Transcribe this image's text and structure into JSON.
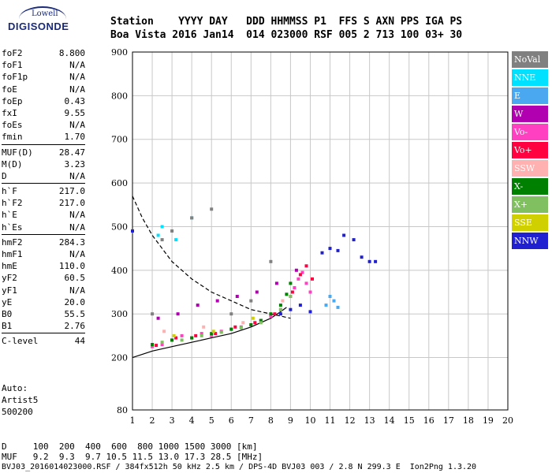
{
  "logo": {
    "line1": "Lowell",
    "line2": "DIGISONDE"
  },
  "header": {
    "row1": "Station    YYYY DAY   DDD HHMMSS P1  FFS S AXN PPS IGA PS",
    "row2": "Boa Vista 2016 Jan14  014 023000 RSF 005 2 713 100 03+ 30"
  },
  "params": [
    {
      "label": "foF2",
      "value": "8.800"
    },
    {
      "label": "foF1",
      "value": "N/A"
    },
    {
      "label": "foF1p",
      "value": "N/A"
    },
    {
      "label": "foE",
      "value": "N/A"
    },
    {
      "label": "foEp",
      "value": "0.43"
    },
    {
      "label": "fxI",
      "value": "9.55"
    },
    {
      "label": "foEs",
      "value": "N/A"
    },
    {
      "label": "fmin",
      "value": "1.70"
    },
    {
      "label": "MUF(D)",
      "value": "28.47",
      "sep": true
    },
    {
      "label": "M(D)",
      "value": "3.23"
    },
    {
      "label": "D",
      "value": "N/A"
    },
    {
      "label": "h`F",
      "value": "217.0",
      "sep": true
    },
    {
      "label": "h`F2",
      "value": "217.0"
    },
    {
      "label": "h`E",
      "value": "N/A"
    },
    {
      "label": "h`Es",
      "value": "N/A"
    },
    {
      "label": "hmF2",
      "value": "284.3",
      "sep": true
    },
    {
      "label": "hmF1",
      "value": "N/A"
    },
    {
      "label": "hmE",
      "value": "110.0"
    },
    {
      "label": "yF2",
      "value": "60.5"
    },
    {
      "label": "yF1",
      "value": "N/A"
    },
    {
      "label": "yE",
      "value": "20.0"
    },
    {
      "label": "B0",
      "value": "55.5"
    },
    {
      "label": "B1",
      "value": "2.76"
    },
    {
      "label": "C-level",
      "value": "44",
      "sep": true
    }
  ],
  "auto": {
    "line1": "Auto:",
    "line2": "Artist5",
    "line3": "500200"
  },
  "footer": {
    "d_row": "D     100  200  400  600  800 1000 1500 3000 [km]",
    "muf_row": "MUF   9.2  9.3  9.7 10.5 11.5 13.0 17.3 28.5 [MHz]",
    "file_row": "BVJ03_2016014023000.RSF / 384fx512h 50 kHz 2.5 km / DPS-4D BVJ03 003 / 2.8 N 299.3 E  Ion2Png 1.3.20"
  },
  "legend": [
    {
      "name": "NoVal",
      "color": "#808080"
    },
    {
      "name": "NNE",
      "color": "#00e0ff"
    },
    {
      "name": "E",
      "color": "#4aa8f0"
    },
    {
      "name": "W",
      "color": "#b000b0"
    },
    {
      "name": "Vo-",
      "color": "#ff40c0"
    },
    {
      "name": "Vo+",
      "color": "#ff0040"
    },
    {
      "name": "SSW",
      "color": "#ffb0b0"
    },
    {
      "name": "X-",
      "color": "#008000"
    },
    {
      "name": "X+",
      "color": "#80c060"
    },
    {
      "name": "SSE",
      "color": "#d0d000"
    },
    {
      "name": "NNW",
      "color": "#2020d0"
    }
  ],
  "chart_data": {
    "type": "scatter",
    "xlabel": "",
    "ylabel": "",
    "xlim": [
      1,
      20
    ],
    "ylim": [
      80,
      900
    ],
    "x_ticks": [
      1,
      2,
      3,
      4,
      5,
      6,
      7,
      8,
      9,
      10,
      11,
      12,
      13,
      14,
      15,
      16,
      17,
      18,
      19,
      20
    ],
    "y_ticks": [
      80,
      200,
      300,
      400,
      500,
      600,
      700,
      800,
      900
    ],
    "grid": true,
    "series": [
      {
        "name": "Vo-",
        "color": "#ff40c0",
        "x": [
          2.0,
          2.5,
          3.0,
          3.5,
          4.0,
          4.5,
          5.0,
          5.5,
          6.0,
          6.5,
          7.0,
          7.5,
          8.0,
          8.5,
          9.0,
          9.2,
          9.4,
          9.6,
          9.8,
          10.0
        ],
        "y": [
          225,
          230,
          240,
          250,
          245,
          255,
          250,
          260,
          265,
          270,
          275,
          285,
          295,
          310,
          340,
          360,
          380,
          395,
          370,
          350
        ]
      },
      {
        "name": "Vo+",
        "color": "#ff0040",
        "x": [
          2.2,
          3.2,
          4.2,
          5.2,
          6.2,
          7.2,
          8.2,
          9.1,
          9.5,
          9.8,
          10.1
        ],
        "y": [
          228,
          245,
          250,
          255,
          270,
          280,
          300,
          350,
          390,
          410,
          380
        ]
      },
      {
        "name": "X-",
        "color": "#008000",
        "x": [
          2.0,
          3.0,
          4.0,
          5.0,
          6.0,
          7.0,
          7.5,
          8.0,
          8.5,
          8.8,
          9.0
        ],
        "y": [
          230,
          240,
          245,
          255,
          265,
          275,
          285,
          300,
          320,
          345,
          370
        ]
      },
      {
        "name": "X+",
        "color": "#80c060",
        "x": [
          2.5,
          3.5,
          4.5,
          5.5,
          6.5,
          7.5,
          8.5,
          9.0
        ],
        "y": [
          235,
          240,
          250,
          258,
          268,
          280,
          310,
          340
        ]
      },
      {
        "name": "W",
        "color": "#b000b0",
        "x": [
          2.3,
          3.3,
          4.3,
          5.3,
          6.3,
          7.3,
          8.3,
          9.3
        ],
        "y": [
          290,
          300,
          320,
          330,
          340,
          350,
          370,
          400
        ]
      },
      {
        "name": "NNW",
        "color": "#2020d0",
        "x": [
          8.5,
          9.0,
          9.5,
          10.0,
          10.6,
          11.0,
          11.4,
          11.7,
          12.2,
          12.6,
          13.0,
          13.3,
          1.0
        ],
        "y": [
          300,
          310,
          320,
          305,
          440,
          450,
          445,
          480,
          470,
          430,
          420,
          420,
          490
        ]
      },
      {
        "name": "E",
        "color": "#4aa8f0",
        "x": [
          10.8,
          11.0,
          11.2,
          11.4
        ],
        "y": [
          320,
          340,
          330,
          315
        ]
      },
      {
        "name": "NNE",
        "color": "#00e0ff",
        "x": [
          2.3,
          2.5,
          3.2,
          4.0
        ],
        "y": [
          480,
          500,
          470,
          520
        ]
      },
      {
        "name": "NoVal",
        "color": "#808080",
        "x": [
          2.0,
          2.5,
          3.0,
          4.0,
          5.0,
          6.0,
          7.0,
          8.0
        ],
        "y": [
          300,
          470,
          490,
          520,
          540,
          300,
          330,
          420
        ]
      },
      {
        "name": "SSW",
        "color": "#ffb0b0",
        "x": [
          2.6,
          4.6,
          6.6,
          8.6
        ],
        "y": [
          260,
          270,
          280,
          330
        ]
      },
      {
        "name": "SSE",
        "color": "#d0d000",
        "x": [
          3.1,
          5.1,
          7.1
        ],
        "y": [
          250,
          260,
          290
        ]
      }
    ],
    "curves": [
      {
        "name": "Profile",
        "x": [
          1,
          2,
          3,
          4,
          5,
          6,
          7,
          8,
          8.5,
          8.8
        ],
        "y": [
          200,
          215,
          225,
          235,
          245,
          255,
          270,
          290,
          305,
          315
        ]
      },
      {
        "name": "MUF",
        "x": [
          1,
          1.5,
          2,
          3,
          4,
          5,
          6,
          7,
          8,
          9
        ],
        "y": [
          570,
          520,
          480,
          420,
          380,
          350,
          330,
          310,
          300,
          290
        ],
        "dashed": true
      }
    ]
  }
}
